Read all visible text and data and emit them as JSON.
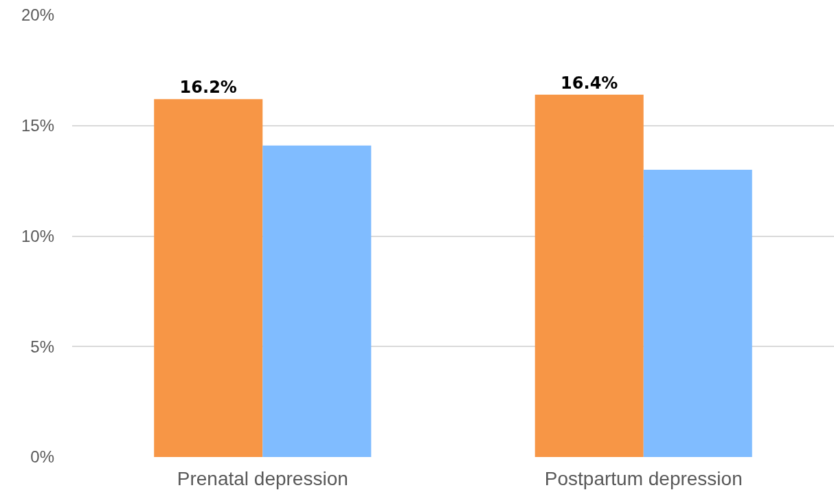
{
  "chart_data": {
    "type": "bar",
    "categories": [
      "Prenatal depression",
      "Postpartum depression"
    ],
    "series": [
      {
        "color": "#f79646",
        "values": [
          16.2,
          16.4
        ],
        "value_labels": [
          "16.2%",
          "16.4%"
        ]
      },
      {
        "color": "#80bcff",
        "values": [
          14.1,
          13.0
        ]
      }
    ],
    "ylim": [
      0,
      20
    ],
    "yticks": [
      {
        "value": 0,
        "label": "0%"
      },
      {
        "value": 5,
        "label": "5%"
      },
      {
        "value": 10,
        "label": "10%"
      },
      {
        "value": 15,
        "label": "15%"
      },
      {
        "value": 20,
        "label": "20%"
      }
    ],
    "grid": "y"
  }
}
